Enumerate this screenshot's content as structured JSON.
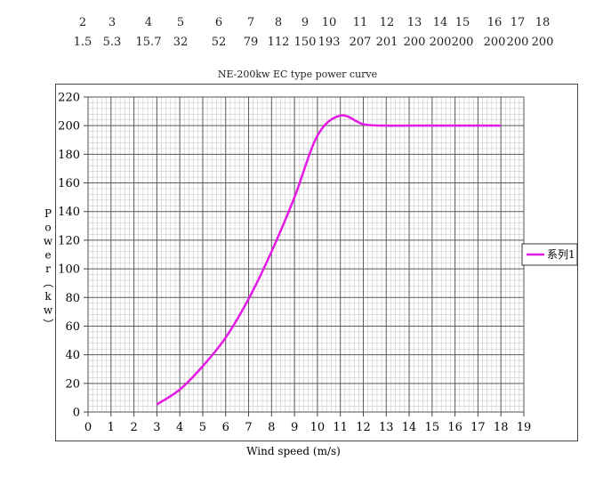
{
  "data_table": {
    "wind_speeds": [
      "2",
      "3",
      "4",
      "5",
      "6",
      "7",
      "8",
      "9",
      "10",
      "11",
      "12",
      "13",
      "14",
      "15",
      "16",
      "17",
      "18"
    ],
    "power_values": [
      "1.5",
      "5.3",
      "15.7",
      "32",
      "52",
      "79",
      "112",
      "150",
      "193",
      "207",
      "201",
      "200",
      "200",
      "200",
      "200",
      "200",
      "200"
    ]
  },
  "chart_data": {
    "type": "line",
    "title": "NE-200kw EC type power curve",
    "xlabel": "Wind speed (m/s)",
    "ylabel": "Power（kw）",
    "xlim": [
      0,
      19
    ],
    "ylim": [
      0,
      220
    ],
    "x_ticks": [
      "0",
      "1",
      "2",
      "3",
      "4",
      "5",
      "6",
      "7",
      "8",
      "9",
      "10",
      "11",
      "12",
      "13",
      "14",
      "15",
      "16",
      "17",
      "18",
      "19"
    ],
    "y_ticks": [
      "0",
      "20",
      "40",
      "60",
      "80",
      "100",
      "120",
      "140",
      "160",
      "180",
      "200",
      "220"
    ],
    "grid": true,
    "legend_position": "right",
    "series": [
      {
        "name": "系列1",
        "color": "#e619e6",
        "x": [
          3,
          4,
          5,
          6,
          7,
          8,
          9,
          10,
          11,
          12,
          13,
          14,
          15,
          16,
          17,
          18
        ],
        "values": [
          5.3,
          15.7,
          32,
          52,
          79,
          112,
          150,
          193,
          207,
          201,
          200,
          200,
          200,
          200,
          200,
          200
        ]
      }
    ]
  }
}
